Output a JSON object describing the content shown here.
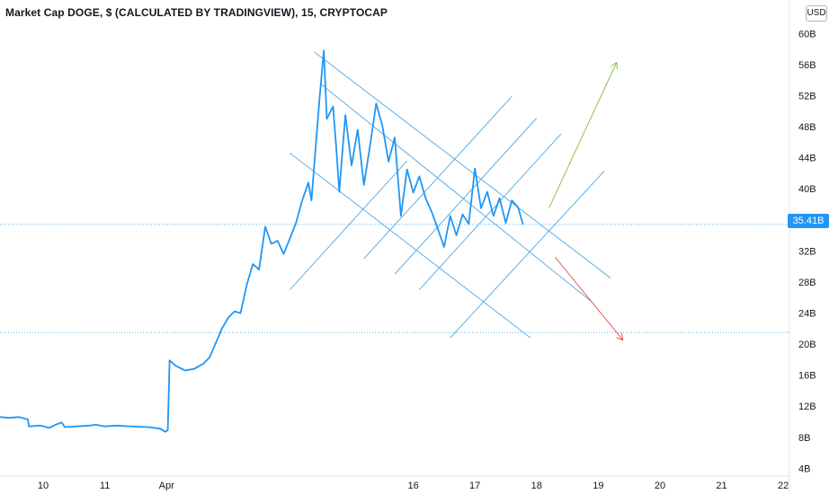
{
  "header": {
    "title": "Market Cap DOGE, $ (CALCULATED BY TRADINGVIEW), 15, CRYPTOCAP",
    "currency": "USD"
  },
  "price_tag": "35.41B",
  "colors": {
    "series": "#2196f3",
    "channel": "#5ab0e8",
    "up_arrow": "#8bc34a",
    "down_arrow": "#ef5350",
    "axis_text": "#131722",
    "dotted_line": "#5ab0e8"
  },
  "chart_data": {
    "type": "line",
    "title": "Market Cap DOGE, $ (CALCULATED BY TRADINGVIEW), 15, CRYPTOCAP",
    "y_unit": "B",
    "ylim": [
      3,
      62
    ],
    "y_ticks": [
      {
        "value": 60,
        "label": "60B"
      },
      {
        "value": 56,
        "label": "56B"
      },
      {
        "value": 52,
        "label": "52B"
      },
      {
        "value": 48,
        "label": "48B"
      },
      {
        "value": 44,
        "label": "44B"
      },
      {
        "value": 40,
        "label": "40B"
      },
      {
        "value": 32,
        "label": "32B"
      },
      {
        "value": 28,
        "label": "28B"
      },
      {
        "value": 24,
        "label": "24B"
      },
      {
        "value": 20,
        "label": "20B"
      },
      {
        "value": 16,
        "label": "16B"
      },
      {
        "value": 12,
        "label": "12B"
      },
      {
        "value": 8,
        "label": "8B"
      },
      {
        "value": 4,
        "label": "4B"
      }
    ],
    "x_unit": "day (Apr = day 12)",
    "xlim": [
      9.3,
      22.1
    ],
    "x_ticks": [
      {
        "value": 10,
        "label": "10"
      },
      {
        "value": 11,
        "label": "11"
      },
      {
        "value": 12,
        "label": "Apr"
      },
      {
        "value": 16,
        "label": "16"
      },
      {
        "value": 17,
        "label": "17"
      },
      {
        "value": 18,
        "label": "18"
      },
      {
        "value": 19,
        "label": "19"
      },
      {
        "value": 20,
        "label": "20"
      },
      {
        "value": 21,
        "label": "21"
      },
      {
        "value": 22,
        "label": "22"
      }
    ],
    "last_value": 35.41,
    "horizontal_line": 21.5,
    "series": [
      {
        "points": [
          [
            9.3,
            10.6
          ],
          [
            9.45,
            10.5
          ],
          [
            9.6,
            10.6
          ],
          [
            9.75,
            10.3
          ],
          [
            9.77,
            9.4
          ],
          [
            9.95,
            9.5
          ],
          [
            10.1,
            9.2
          ],
          [
            10.2,
            9.6
          ],
          [
            10.3,
            9.9
          ],
          [
            10.35,
            9.3
          ],
          [
            10.55,
            9.4
          ],
          [
            10.75,
            9.5
          ],
          [
            10.85,
            9.6
          ],
          [
            11.0,
            9.4
          ],
          [
            11.2,
            9.5
          ],
          [
            11.4,
            9.4
          ],
          [
            11.7,
            9.3
          ],
          [
            11.9,
            9.1
          ],
          [
            11.98,
            8.7
          ],
          [
            12.02,
            8.9
          ],
          [
            12.05,
            17.9
          ],
          [
            12.15,
            17.2
          ],
          [
            12.3,
            16.6
          ],
          [
            12.45,
            16.8
          ],
          [
            12.6,
            17.5
          ],
          [
            12.7,
            18.3
          ],
          [
            12.9,
            22.0
          ],
          [
            13.0,
            23.4
          ],
          [
            13.1,
            24.2
          ],
          [
            13.2,
            24.0
          ],
          [
            13.3,
            27.6
          ],
          [
            13.4,
            30.3
          ],
          [
            13.5,
            29.6
          ],
          [
            13.6,
            35.1
          ],
          [
            13.7,
            32.9
          ],
          [
            13.8,
            33.3
          ],
          [
            13.9,
            31.6
          ],
          [
            14.0,
            33.6
          ],
          [
            14.1,
            35.6
          ],
          [
            14.2,
            38.5
          ],
          [
            14.3,
            40.8
          ],
          [
            14.35,
            38.5
          ],
          [
            14.4,
            43.5
          ],
          [
            14.48,
            51.5
          ],
          [
            14.55,
            57.8
          ],
          [
            14.6,
            49.0
          ],
          [
            14.7,
            50.6
          ],
          [
            14.75,
            45.6
          ],
          [
            14.8,
            39.6
          ],
          [
            14.9,
            49.5
          ],
          [
            15.0,
            43.0
          ],
          [
            15.1,
            47.6
          ],
          [
            15.2,
            40.5
          ],
          [
            15.3,
            45.6
          ],
          [
            15.4,
            51.0
          ],
          [
            15.5,
            48.1
          ],
          [
            15.6,
            43.5
          ],
          [
            15.7,
            46.6
          ],
          [
            15.8,
            36.5
          ],
          [
            15.9,
            42.5
          ],
          [
            16.0,
            39.5
          ],
          [
            16.1,
            41.6
          ],
          [
            16.2,
            38.8
          ],
          [
            16.3,
            37.0
          ],
          [
            16.4,
            34.8
          ],
          [
            16.5,
            32.5
          ],
          [
            16.6,
            36.5
          ],
          [
            16.7,
            34.0
          ],
          [
            16.8,
            36.7
          ],
          [
            16.9,
            35.5
          ],
          [
            17.0,
            42.6
          ],
          [
            17.1,
            37.5
          ],
          [
            17.2,
            39.6
          ],
          [
            17.3,
            36.5
          ],
          [
            17.4,
            38.8
          ],
          [
            17.5,
            35.6
          ],
          [
            17.6,
            38.5
          ],
          [
            17.7,
            37.6
          ],
          [
            17.78,
            35.4
          ]
        ]
      }
    ],
    "channel_lines": [
      [
        [
          14.4,
          57.6
        ],
        [
          19.2,
          28.5
        ]
      ],
      [
        [
          14.5,
          53.5
        ],
        [
          18.9,
          25.4
        ]
      ],
      [
        [
          14.0,
          44.6
        ],
        [
          17.9,
          20.8
        ]
      ],
      [
        [
          14.0,
          27.0
        ],
        [
          15.9,
          43.6
        ]
      ],
      [
        [
          15.2,
          31.0
        ],
        [
          17.6,
          51.9
        ]
      ],
      [
        [
          15.7,
          29.0
        ],
        [
          18.0,
          49.1
        ]
      ],
      [
        [
          16.1,
          27.0
        ],
        [
          18.4,
          47.1
        ]
      ],
      [
        [
          16.6,
          20.8
        ],
        [
          19.1,
          42.3
        ]
      ]
    ],
    "arrows": [
      {
        "direction": "up",
        "from": [
          18.2,
          37.5
        ],
        "to": [
          19.3,
          56.3
        ]
      },
      {
        "direction": "down",
        "from": [
          18.3,
          31.2
        ],
        "to": [
          19.4,
          20.5
        ]
      }
    ]
  }
}
